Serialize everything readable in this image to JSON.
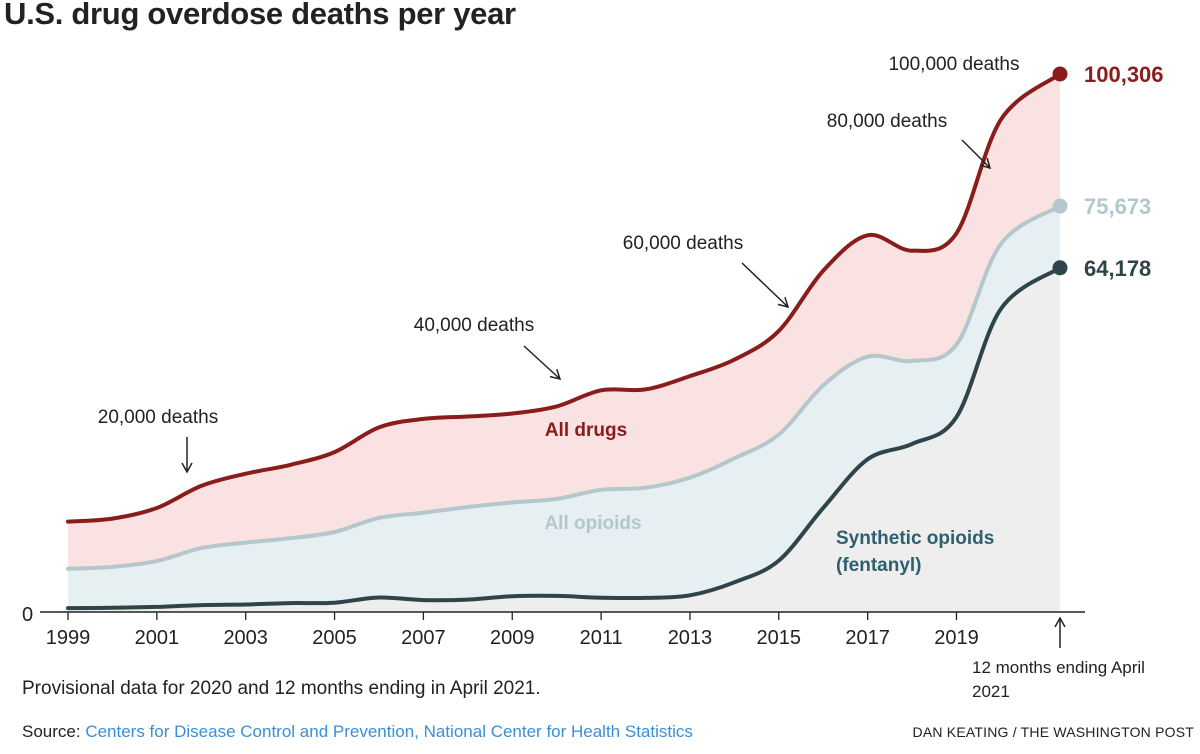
{
  "title": "U.S. drug overdose deaths per year",
  "note": "Provisional data for 2020 and 12 months ending in April 2021.",
  "source": {
    "label": "Source: ",
    "link_text": "Centers for Disease Control and Prevention, National Center for Health Statistics"
  },
  "credit": "DAN KEATING / THE WASHINGTON POST",
  "colors": {
    "all_drugs": "#8b1c1c",
    "all_drugs_fill": "#f9e2e1",
    "all_opioids": "#b3c7cc",
    "all_opioids_fill": "#e6eff1",
    "synthetic": "#2f4448",
    "synthetic_fill": "#eeeeee",
    "synthetic_label": "#2e5f6e",
    "axis": "#222222"
  },
  "chart_data": {
    "type": "area",
    "title": "U.S. drug overdose deaths per year",
    "xlabel": "",
    "ylabel": "",
    "ylim": [
      0,
      100306
    ],
    "xlim": [
      1999,
      2021.33
    ],
    "x_ticks": [
      1999,
      2001,
      2003,
      2005,
      2007,
      2009,
      2011,
      2013,
      2015,
      2017,
      2019
    ],
    "y_ticks": [
      0
    ],
    "grid": false,
    "x": [
      1999,
      2000,
      2001,
      2002,
      2003,
      2004,
      2005,
      2006,
      2007,
      2008,
      2009,
      2010,
      2011,
      2012,
      2013,
      2014,
      2015,
      2016,
      2017,
      2018,
      2019,
      2020,
      2021.33
    ],
    "series": [
      {
        "name": "All drugs",
        "key": "all_drugs",
        "values": [
          16849,
          17415,
          19394,
          23518,
          25785,
          27424,
          29813,
          34425,
          36010,
          36450,
          37004,
          38329,
          41340,
          41502,
          43982,
          47055,
          52404,
          63632,
          70237,
          67367,
          70630,
          91799,
          100306
        ]
      },
      {
        "name": "All opioids",
        "key": "all_opioids",
        "values": [
          8048,
          8407,
          9496,
          11920,
          12940,
          13756,
          14918,
          17545,
          18516,
          19582,
          20422,
          21089,
          22784,
          23166,
          25052,
          28647,
          33091,
          42249,
          47600,
          46802,
          49860,
          68630,
          75673
        ]
      },
      {
        "name": "Synthetic opioids (fentanyl)",
        "key": "synthetic",
        "values": [
          730,
          782,
          957,
          1295,
          1400,
          1664,
          1742,
          2707,
          2213,
          2306,
          2946,
          3007,
          2666,
          2628,
          3105,
          5544,
          9580,
          19413,
          28466,
          31335,
          36359,
          56516,
          64178
        ]
      }
    ],
    "end_labels": [
      {
        "series": "all_drugs",
        "text": "100,306"
      },
      {
        "series": "all_opioids",
        "text": "75,673"
      },
      {
        "series": "synthetic",
        "text": "64,178"
      }
    ],
    "series_labels": [
      {
        "series": "all_drugs",
        "lines": [
          "All drugs"
        ]
      },
      {
        "series": "all_opioids",
        "lines": [
          "All opioids"
        ]
      },
      {
        "series": "synthetic",
        "lines": [
          "Synthetic opioids",
          "(fentanyl)"
        ]
      }
    ],
    "annotations": [
      {
        "text": "20,000 deaths",
        "value": 20000
      },
      {
        "text": "40,000 deaths",
        "value": 40000
      },
      {
        "text": "60,000 deaths",
        "value": 60000
      },
      {
        "text": "80,000 deaths",
        "value": 80000
      },
      {
        "text": "100,000 deaths",
        "value": 100000
      }
    ],
    "end_note": [
      "12 months ending April",
      "2021"
    ],
    "zero_label": "0"
  }
}
